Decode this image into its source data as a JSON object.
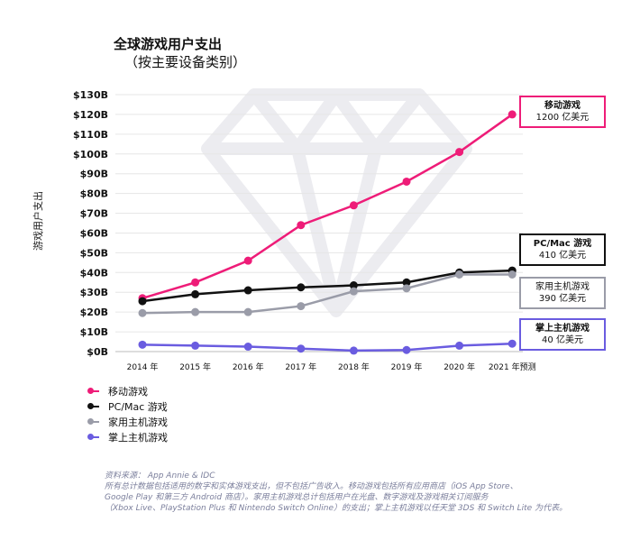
{
  "chart_data": {
    "type": "line",
    "title": "全球游戏用户支出",
    "subtitle": "（按主要设备类别）",
    "xlabel": "",
    "ylabel": "游戏用户支出",
    "categories": [
      "2014 年",
      "2015 年",
      "2016 年",
      "2017 年",
      "2018 年",
      "2019 年",
      "2020 年",
      "2021 年预测"
    ],
    "ylim": [
      0,
      130
    ],
    "yticks": [
      "$0B",
      "$10B",
      "$20B",
      "$30B",
      "$40B",
      "$50B",
      "$60B",
      "$70B",
      "$80B",
      "$90B",
      "$100B",
      "$110B",
      "$120B",
      "$130B"
    ],
    "grid": true,
    "legend_position": "bottom-left",
    "series": [
      {
        "name": "移动游戏",
        "color": "#ee1c78",
        "values": [
          27,
          35,
          46,
          64,
          74,
          86,
          101,
          120
        ]
      },
      {
        "name": "PC/Mac 游戏",
        "color": "#111111",
        "values": [
          25.5,
          29,
          31,
          32.5,
          33.5,
          35,
          40,
          41
        ]
      },
      {
        "name": "家用主机游戏",
        "color": "#9a9ca8",
        "values": [
          19.5,
          20,
          20,
          23,
          30.5,
          32,
          39,
          39
        ]
      },
      {
        "name": "掌上主机游戏",
        "color": "#6a5ce0",
        "values": [
          3.5,
          3,
          2.5,
          1.5,
          0.5,
          0.8,
          3,
          4
        ]
      }
    ],
    "annotations": [
      {
        "title": "移动游戏",
        "value": "1200 亿美元"
      },
      {
        "title": "PC/Mac 游戏",
        "value": "410 亿美元"
      },
      {
        "title": "家用主机游戏",
        "value": "390 亿美元"
      },
      {
        "title": "掌上主机游戏",
        "value": "40 亿美元"
      }
    ]
  },
  "footnote": {
    "source": "资料来源： App Annie & IDC",
    "lines": [
      "所有总计数据包括适用的数字和实体游戏支出，但不包括广告收入。移动游戏包括所有应用商店（iOS App Store、",
      "Google Play 和第三方 Android 商店）。家用主机游戏总计包括用户在光盘、数字游戏及游戏相关订阅服务",
      "（Xbox Live、PlayStation Plus 和 Nintendo Switch Online）的支出；掌上主机游戏以任天堂 3DS 和 Switch Lite 为代表。"
    ]
  }
}
